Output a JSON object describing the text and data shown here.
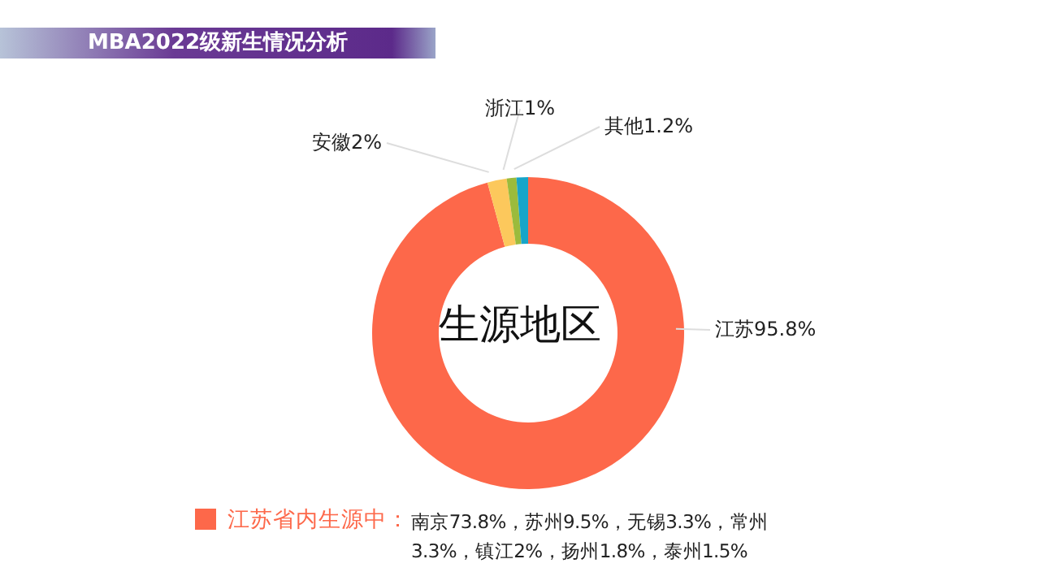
{
  "chart_data": {
    "type": "donut",
    "title": "MBA2022级新生情况分析",
    "categories": [
      "江苏",
      "安徽",
      "浙江",
      "其他"
    ],
    "values": [
      95.8,
      2,
      1,
      1.2
    ],
    "value_labels": [
      "95.8%",
      "2%",
      "1%",
      "1.2%"
    ],
    "colors": [
      "#fd684a",
      "#fcc85c",
      "#9bbb3c",
      "#17a5c9"
    ],
    "annotations": [
      "生源地区",
      "江苏省内生源中：",
      "南京73.8%，苏州9.5%，无锡3.3%，常州3.3%，镇江2%，扬州1.8%，泰州1.5%"
    ],
    "legend": false
  }
}
